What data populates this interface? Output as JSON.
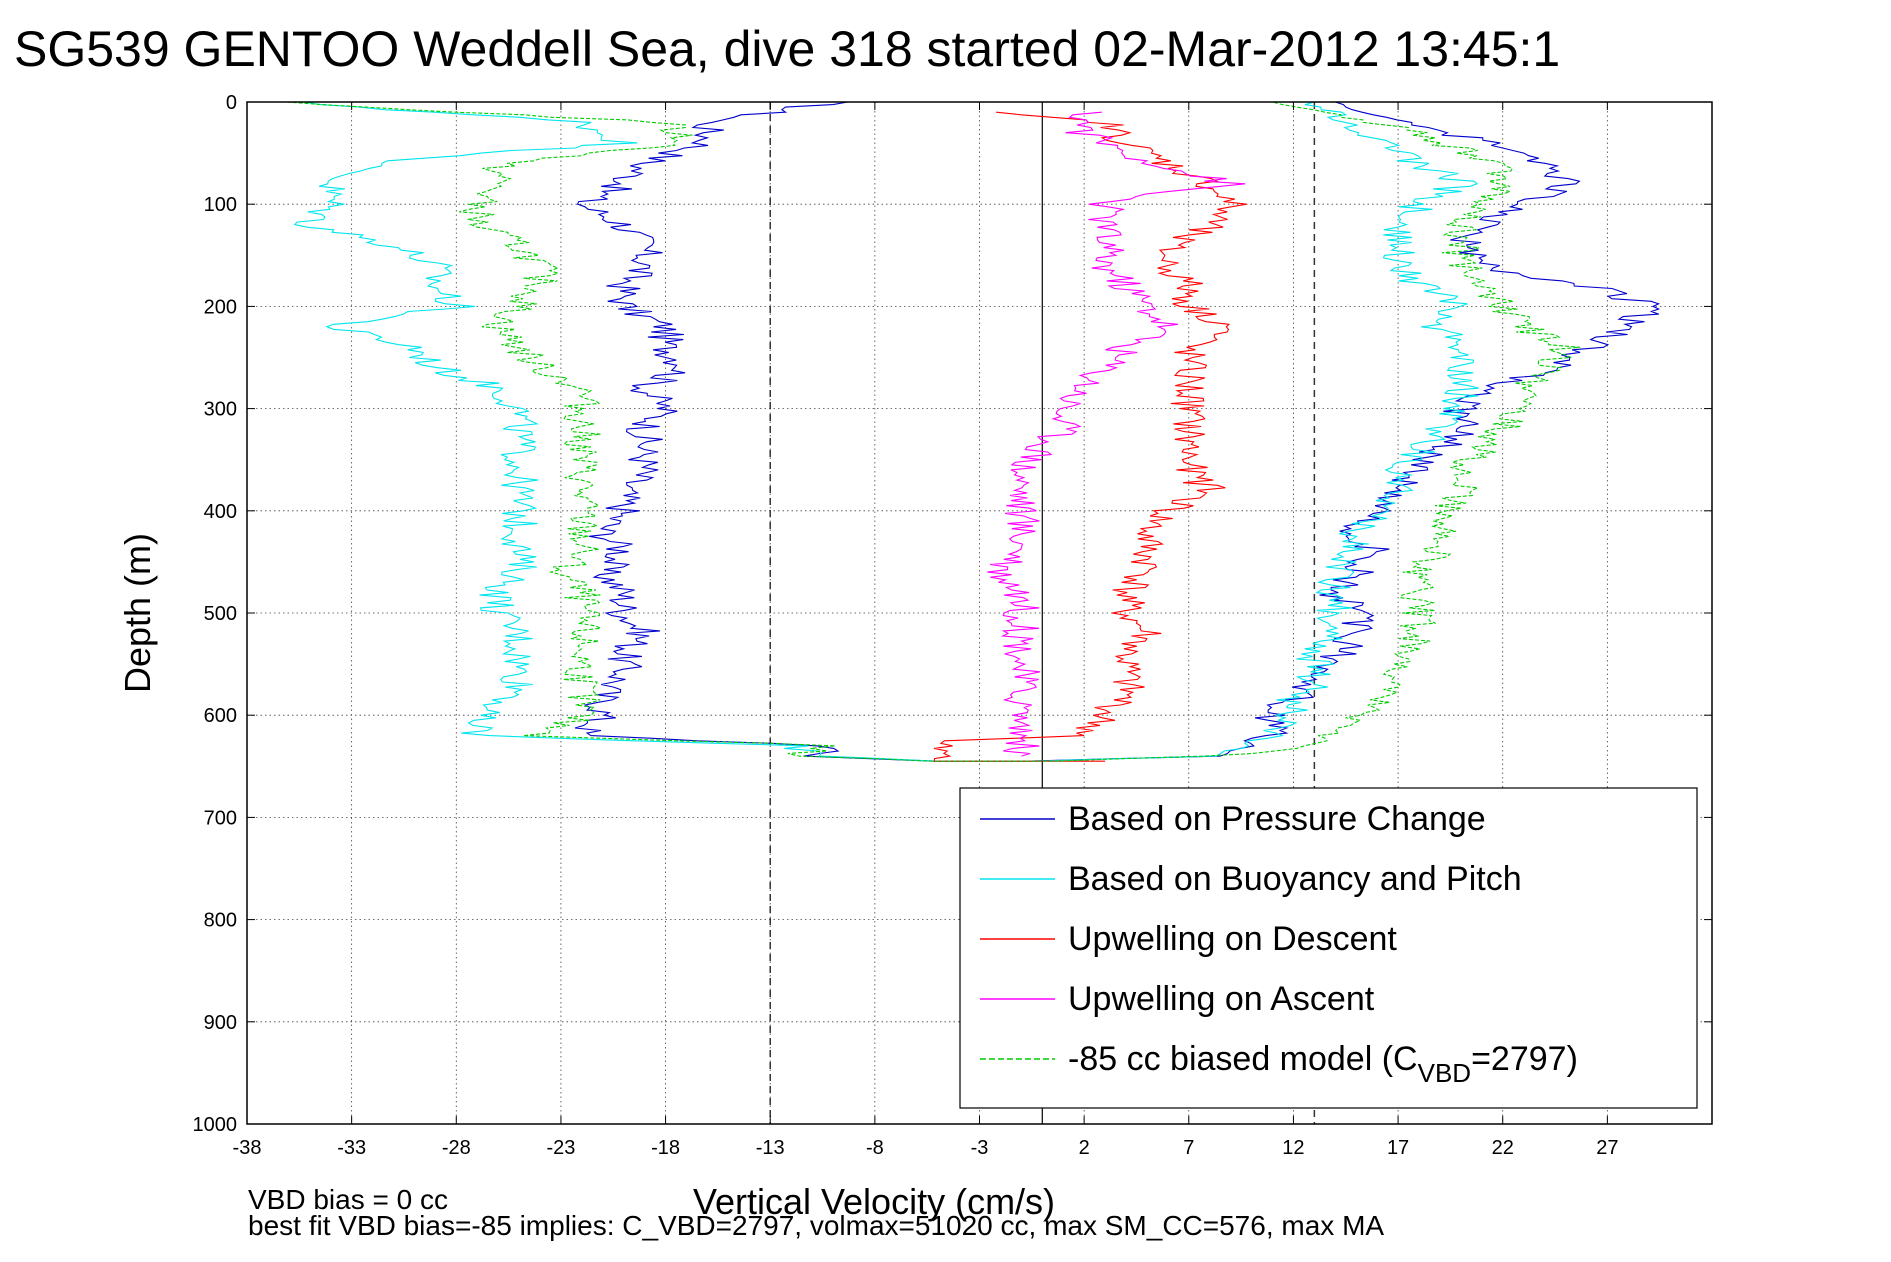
{
  "chart_data": {
    "type": "line",
    "title": "SG539 GENTOO Weddell Sea, dive 318 started 02-Mar-2012 13:45:1",
    "xlabel": "Vertical Velocity (cm/s)",
    "ylabel": "Depth (m)",
    "xlim": [
      -38,
      32
    ],
    "ylim": [
      0,
      1000
    ],
    "y_reversed": true,
    "x_ticks": [
      -38,
      -33,
      -28,
      -23,
      -18,
      -13,
      -8,
      -3,
      2,
      7,
      12,
      17,
      22,
      27
    ],
    "y_ticks": [
      0,
      100,
      200,
      300,
      400,
      500,
      600,
      700,
      800,
      900,
      1000
    ],
    "grid": true,
    "legend_position": "bottom-right",
    "reference_lines": {
      "solid_x": [
        0
      ],
      "dashed_x": [
        -13,
        13
      ]
    },
    "series": [
      {
        "name": "Based on Pressure Change",
        "color": "#0000cc",
        "style": "solid",
        "points": [
          [
            -10,
            0
          ],
          [
            -16,
            20
          ],
          [
            -16,
            40
          ],
          [
            -19,
            60
          ],
          [
            -20,
            80
          ],
          [
            -22,
            100
          ],
          [
            -20,
            120
          ],
          [
            -19,
            140
          ],
          [
            -19,
            160
          ],
          [
            -20,
            180
          ],
          [
            -20,
            200
          ],
          [
            -18,
            220
          ],
          [
            -18,
            240
          ],
          [
            -17,
            260
          ],
          [
            -19,
            280
          ],
          [
            -18,
            300
          ],
          [
            -19,
            320
          ],
          [
            -19,
            340
          ],
          [
            -19,
            360
          ],
          [
            -20,
            380
          ],
          [
            -20,
            400
          ],
          [
            -21,
            420
          ],
          [
            -20,
            440
          ],
          [
            -21,
            460
          ],
          [
            -20,
            480
          ],
          [
            -20,
            500
          ],
          [
            -19,
            520
          ],
          [
            -20,
            540
          ],
          [
            -20,
            560
          ],
          [
            -21,
            580
          ],
          [
            -21,
            600
          ],
          [
            -22,
            620
          ],
          [
            -10,
            630
          ],
          [
            -11,
            640
          ],
          [
            -5,
            645
          ],
          [
            0,
            645
          ],
          [
            8,
            640
          ],
          [
            10,
            630
          ],
          [
            11,
            620
          ],
          [
            11,
            600
          ],
          [
            12,
            585
          ],
          [
            13,
            570
          ],
          [
            14,
            545
          ],
          [
            15,
            520
          ],
          [
            15,
            500
          ],
          [
            14,
            480
          ],
          [
            15,
            460
          ],
          [
            16,
            440
          ],
          [
            15,
            420
          ],
          [
            16,
            400
          ],
          [
            17,
            380
          ],
          [
            18,
            360
          ],
          [
            19,
            340
          ],
          [
            20,
            320
          ],
          [
            20,
            300
          ],
          [
            21,
            280
          ],
          [
            25,
            260
          ],
          [
            26,
            240
          ],
          [
            28,
            220
          ],
          [
            29,
            200
          ],
          [
            26,
            180
          ],
          [
            21,
            160
          ],
          [
            20,
            140
          ],
          [
            21,
            120
          ],
          [
            23,
            100
          ],
          [
            25,
            80
          ],
          [
            24,
            60
          ],
          [
            21,
            40
          ],
          [
            18,
            20
          ],
          [
            14,
            0
          ]
        ]
      },
      {
        "name": "Based on Buoyancy and Pitch",
        "color": "#00e5ee",
        "style": "solid",
        "points": [
          [
            -36,
            0
          ],
          [
            -22,
            20
          ],
          [
            -20,
            40
          ],
          [
            -26,
            50
          ],
          [
            -32,
            60
          ],
          [
            -34,
            80
          ],
          [
            -34,
            100
          ],
          [
            -35,
            120
          ],
          [
            -31,
            140
          ],
          [
            -29,
            160
          ],
          [
            -29,
            180
          ],
          [
            -28,
            200
          ],
          [
            -34,
            220
          ],
          [
            -30,
            240
          ],
          [
            -29,
            260
          ],
          [
            -26,
            280
          ],
          [
            -25,
            300
          ],
          [
            -25,
            320
          ],
          [
            -25,
            340
          ],
          [
            -25,
            360
          ],
          [
            -25,
            380
          ],
          [
            -25,
            400
          ],
          [
            -25,
            420
          ],
          [
            -25,
            440
          ],
          [
            -25,
            460
          ],
          [
            -26,
            480
          ],
          [
            -26,
            500
          ],
          [
            -25,
            520
          ],
          [
            -25,
            540
          ],
          [
            -25,
            560
          ],
          [
            -25,
            580
          ],
          [
            -27,
            600
          ],
          [
            -27,
            620
          ],
          [
            -12,
            630
          ],
          [
            -10,
            640
          ],
          [
            -5,
            645
          ],
          [
            0,
            645
          ],
          [
            8,
            640
          ],
          [
            9,
            630
          ],
          [
            11,
            620
          ],
          [
            12,
            600
          ],
          [
            12,
            585
          ],
          [
            13,
            570
          ],
          [
            13,
            545
          ],
          [
            14,
            520
          ],
          [
            14,
            500
          ],
          [
            14,
            480
          ],
          [
            14,
            460
          ],
          [
            15,
            440
          ],
          [
            15,
            420
          ],
          [
            16,
            400
          ],
          [
            17,
            380
          ],
          [
            17,
            360
          ],
          [
            18,
            340
          ],
          [
            19,
            320
          ],
          [
            20,
            300
          ],
          [
            20,
            280
          ],
          [
            20,
            260
          ],
          [
            20,
            240
          ],
          [
            19,
            220
          ],
          [
            20,
            200
          ],
          [
            18,
            180
          ],
          [
            17,
            160
          ],
          [
            17,
            140
          ],
          [
            17,
            120
          ],
          [
            18,
            100
          ],
          [
            20,
            80
          ],
          [
            18,
            60
          ],
          [
            16,
            40
          ],
          [
            14,
            20
          ],
          [
            13,
            0
          ]
        ]
      },
      {
        "name": "Upwelling on Descent",
        "color": "#ff0000",
        "style": "solid",
        "points": [
          [
            -3,
            10
          ],
          [
            3,
            20
          ],
          [
            4,
            40
          ],
          [
            6,
            60
          ],
          [
            8,
            80
          ],
          [
            9,
            100
          ],
          [
            8,
            120
          ],
          [
            6,
            140
          ],
          [
            6,
            160
          ],
          [
            7,
            180
          ],
          [
            7,
            200
          ],
          [
            9,
            220
          ],
          [
            7,
            240
          ],
          [
            7,
            260
          ],
          [
            7,
            280
          ],
          [
            7,
            300
          ],
          [
            7,
            320
          ],
          [
            7,
            340
          ],
          [
            7,
            360
          ],
          [
            8,
            380
          ],
          [
            6,
            400
          ],
          [
            5,
            420
          ],
          [
            5,
            440
          ],
          [
            5,
            460
          ],
          [
            4,
            480
          ],
          [
            4,
            500
          ],
          [
            5,
            520
          ],
          [
            4,
            540
          ],
          [
            4,
            560
          ],
          [
            4,
            580
          ],
          [
            3,
            600
          ],
          [
            2,
            620
          ],
          [
            -5,
            625
          ],
          [
            -5,
            645
          ],
          [
            3,
            645
          ]
        ]
      },
      {
        "name": "Upwelling on Ascent",
        "color": "#ff00ff",
        "style": "solid",
        "points": [
          [
            2,
            10
          ],
          [
            2,
            30
          ],
          [
            4,
            50
          ],
          [
            7,
            70
          ],
          [
            9,
            80
          ],
          [
            5,
            90
          ],
          [
            3,
            100
          ],
          [
            3,
            120
          ],
          [
            3,
            140
          ],
          [
            3,
            160
          ],
          [
            4,
            180
          ],
          [
            5,
            200
          ],
          [
            6,
            220
          ],
          [
            4,
            240
          ],
          [
            3,
            260
          ],
          [
            2,
            280
          ],
          [
            1,
            300
          ],
          [
            1,
            320
          ],
          [
            0,
            340
          ],
          [
            -1,
            360
          ],
          [
            -1,
            380
          ],
          [
            -1,
            400
          ],
          [
            -1,
            420
          ],
          [
            -1,
            440
          ],
          [
            -2,
            460
          ],
          [
            -1,
            480
          ],
          [
            -1,
            500
          ],
          [
            -1,
            520
          ],
          [
            -1,
            540
          ],
          [
            -1,
            560
          ],
          [
            -1,
            580
          ],
          [
            -1,
            600
          ],
          [
            -1,
            620
          ],
          [
            -1,
            640
          ]
        ]
      },
      {
        "name": "-85 cc biased model (C_VBD=2797)",
        "color": "#00cc00",
        "style": "dashed",
        "points": [
          [
            -37,
            0
          ],
          [
            -18,
            20
          ],
          [
            -17,
            40
          ],
          [
            -21,
            50
          ],
          [
            -26,
            60
          ],
          [
            -26,
            80
          ],
          [
            -27,
            100
          ],
          [
            -27,
            120
          ],
          [
            -25,
            140
          ],
          [
            -24,
            160
          ],
          [
            -24,
            180
          ],
          [
            -25,
            200
          ],
          [
            -26,
            220
          ],
          [
            -25,
            240
          ],
          [
            -24,
            260
          ],
          [
            -22,
            280
          ],
          [
            -22,
            300
          ],
          [
            -22,
            320
          ],
          [
            -22,
            340
          ],
          [
            -22,
            360
          ],
          [
            -22,
            380
          ],
          [
            -22,
            400
          ],
          [
            -22,
            420
          ],
          [
            -22,
            440
          ],
          [
            -23,
            460
          ],
          [
            -22,
            480
          ],
          [
            -22,
            500
          ],
          [
            -22,
            520
          ],
          [
            -22,
            540
          ],
          [
            -22,
            560
          ],
          [
            -22,
            580
          ],
          [
            -22,
            600
          ],
          [
            -24,
            620
          ],
          [
            -10,
            630
          ],
          [
            -12,
            640
          ],
          [
            -5,
            645
          ],
          [
            0,
            645
          ],
          [
            8,
            640
          ],
          [
            12,
            635
          ],
          [
            13,
            630
          ],
          [
            14,
            620
          ],
          [
            15,
            600
          ],
          [
            16,
            585
          ],
          [
            17,
            560
          ],
          [
            17,
            545
          ],
          [
            18,
            520
          ],
          [
            18,
            500
          ],
          [
            18,
            480
          ],
          [
            18,
            460
          ],
          [
            19,
            440
          ],
          [
            19,
            420
          ],
          [
            19,
            400
          ],
          [
            20,
            380
          ],
          [
            20,
            360
          ],
          [
            21,
            340
          ],
          [
            22,
            320
          ],
          [
            23,
            300
          ],
          [
            23,
            280
          ],
          [
            24,
            260
          ],
          [
            25,
            240
          ],
          [
            23,
            220
          ],
          [
            22,
            200
          ],
          [
            21,
            180
          ],
          [
            20,
            160
          ],
          [
            20,
            140
          ],
          [
            20,
            120
          ],
          [
            21,
            100
          ],
          [
            22,
            80
          ],
          [
            22,
            60
          ],
          [
            19,
            40
          ],
          [
            16,
            20
          ],
          [
            11,
            0
          ]
        ]
      }
    ],
    "legend_entries": [
      "Based on Pressure Change",
      "Based on Buoyancy and Pitch",
      "Upwelling on Descent",
      "Upwelling on Ascent",
      "-85 cc biased model (C"
    ],
    "legend_subscript": "VBD",
    "legend_suffix": "=2797)",
    "annotations": [
      "VBD bias = 0 cc",
      "best fit VBD bias=-85 implies: C_VBD=2797, volmax=51020 cc, max SM_CC=576, max MA"
    ]
  }
}
